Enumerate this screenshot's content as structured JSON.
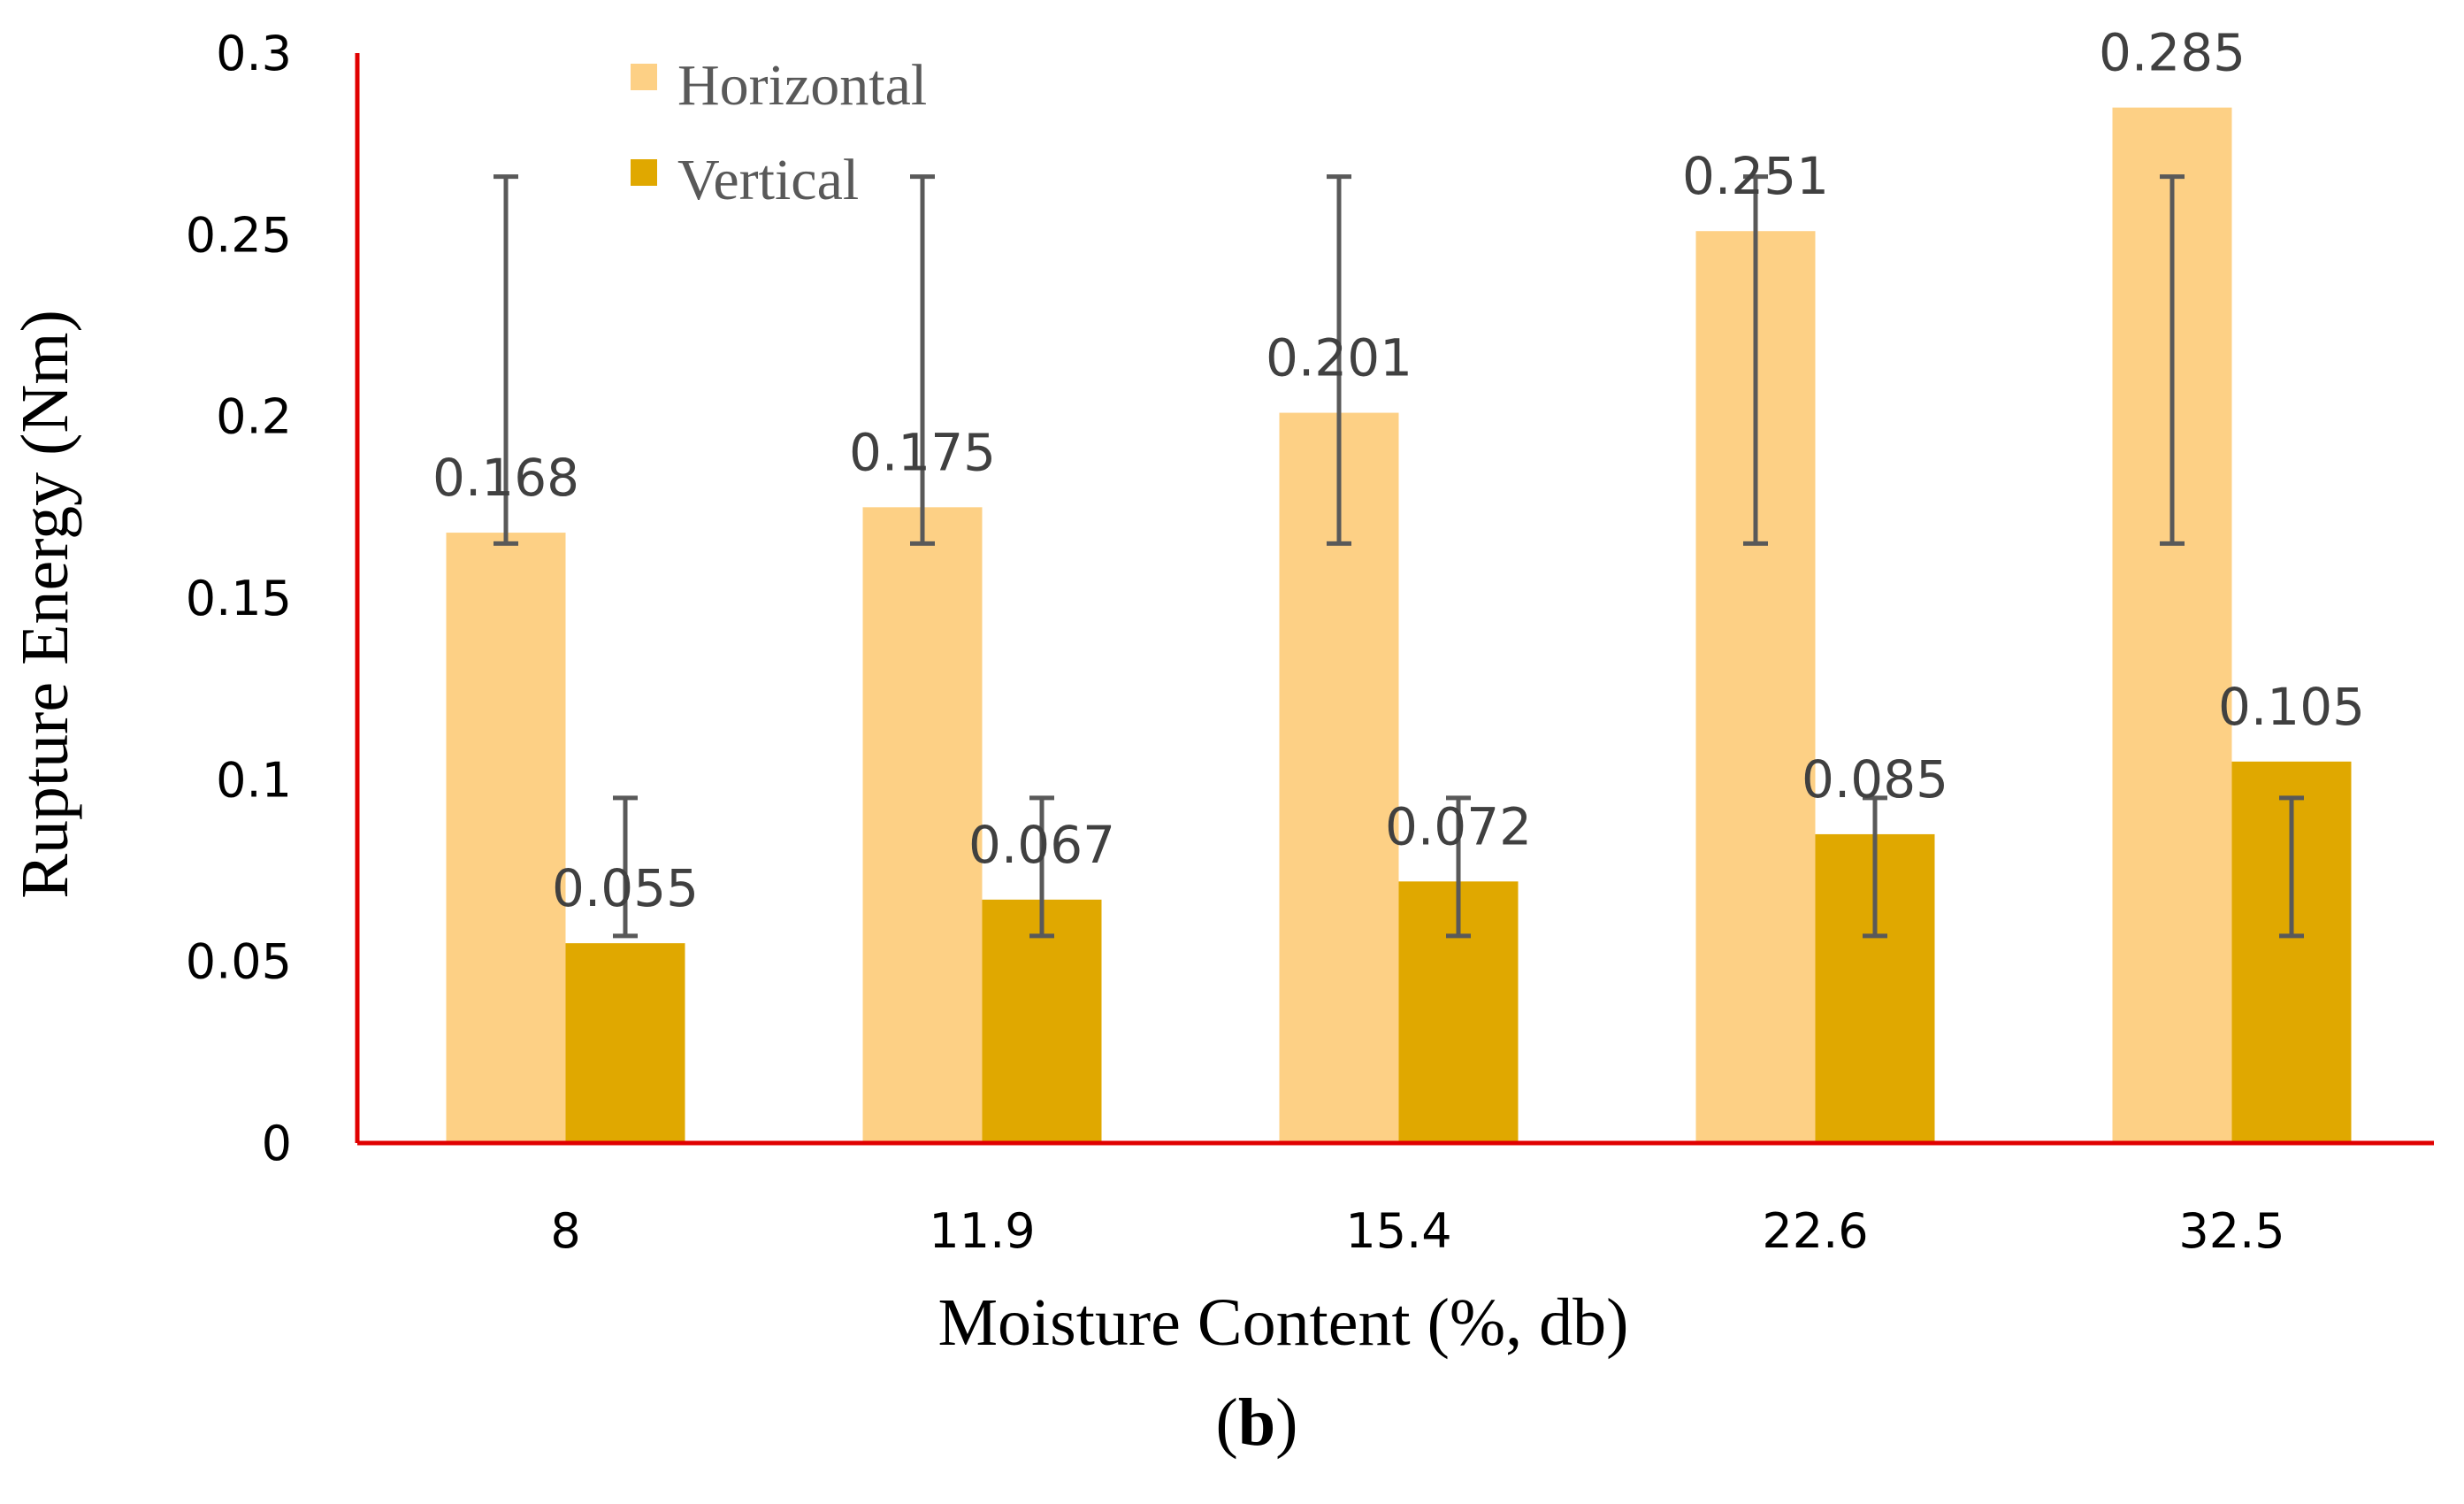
{
  "chart_data": {
    "type": "bar",
    "title": "",
    "xlabel": "Moisture Content (%, db)",
    "ylabel": "Rupture Energy (Nm)",
    "categories": [
      "8",
      "11.9",
      "15.4",
      "22.6",
      "32.5"
    ],
    "ylim": [
      0,
      0.3
    ],
    "yticks": [
      0,
      0.05,
      0.1,
      0.15,
      0.2,
      0.25,
      0.3
    ],
    "ytick_labels": [
      "0",
      "0.05",
      "0.1",
      "0.15",
      "0.2",
      "0.25",
      "0.3"
    ],
    "grid": false,
    "legend_position": "top-left",
    "series": [
      {
        "name": "Horizontal",
        "color": "#FDD085",
        "values": [
          0.168,
          0.175,
          0.201,
          0.251,
          0.285
        ],
        "value_labels": [
          "0.168",
          "0.175",
          "0.201",
          "0.251",
          "0.285"
        ],
        "error_low": [
          0.165,
          0.165,
          0.165,
          0.165,
          0.165
        ],
        "error_high": [
          0.266,
          0.266,
          0.266,
          0.266,
          0.266
        ]
      },
      {
        "name": "Vertical",
        "color": "#E0A800",
        "values": [
          0.055,
          0.067,
          0.072,
          0.085,
          0.105
        ],
        "value_labels": [
          "0.055",
          "0.067",
          "0.072",
          "0.085",
          "0.105"
        ],
        "error_low": [
          0.057,
          0.057,
          0.057,
          0.057,
          0.057
        ],
        "error_high": [
          0.095,
          0.095,
          0.095,
          0.095,
          0.095
        ]
      }
    ],
    "axis_color": "#E00000",
    "errorbar_color": "#595959",
    "caption": {
      "open": "(",
      "letter": "b",
      "close": ")"
    }
  }
}
